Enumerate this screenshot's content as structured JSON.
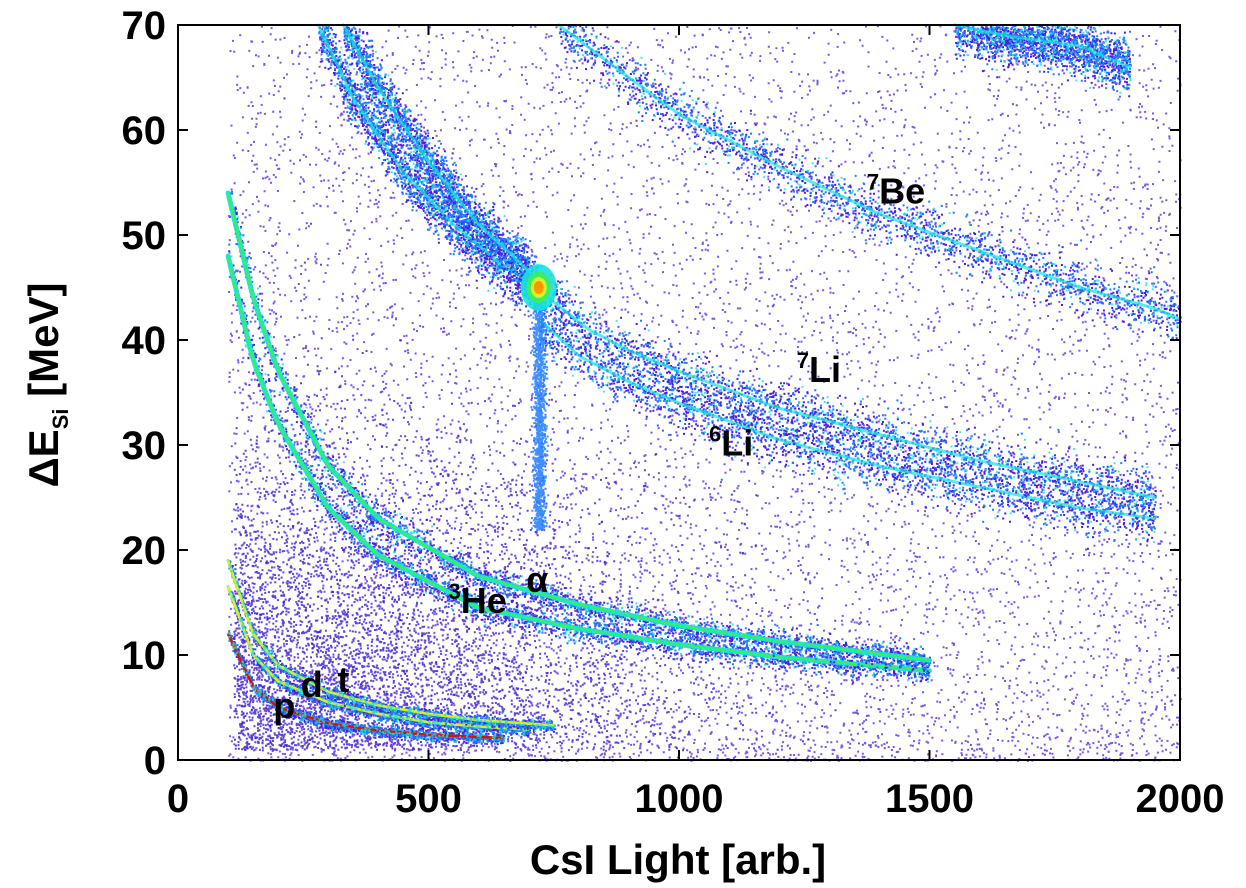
{
  "chart_data": {
    "type": "heatmap",
    "xlabel": "CsI Light [arb.]",
    "ylabel_main": "ΔE",
    "ylabel_sub": "Si",
    "ylabel_unit": "[MeV]",
    "xlim": [
      0,
      2000
    ],
    "ylim": [
      0,
      70
    ],
    "xticks": [
      0,
      500,
      1000,
      1500,
      2000
    ],
    "yticks": [
      0,
      10,
      20,
      30,
      40,
      50,
      60,
      70
    ],
    "grid": false,
    "colormap": [
      "#4b1fd8",
      "#1e7bff",
      "#18e0e0",
      "#3cf05a",
      "#f0f020",
      "#ff8c00",
      "#e00000"
    ],
    "particle_labels": [
      {
        "text": "p",
        "sup": "",
        "x": 190,
        "y": 4
      },
      {
        "text": "d",
        "sup": "",
        "x": 245,
        "y": 6
      },
      {
        "text": "t",
        "sup": "",
        "x": 318,
        "y": 6.5
      },
      {
        "text": "He",
        "sup": "3",
        "x": 540,
        "y": 14
      },
      {
        "text": "α",
        "sup": "",
        "x": 695,
        "y": 16
      },
      {
        "text": "Li",
        "sup": "6",
        "x": 1060,
        "y": 29
      },
      {
        "text": "Li",
        "sup": "7",
        "x": 1235,
        "y": 36
      },
      {
        "text": "Be",
        "sup": "7",
        "x": 1375,
        "y": 53
      }
    ],
    "bands": [
      {
        "name": "p",
        "x": [
          100,
          150,
          200,
          300,
          400,
          500,
          600,
          650
        ],
        "y": [
          12,
          7,
          5,
          3.5,
          2.8,
          2.4,
          2.2,
          2.1
        ]
      },
      {
        "name": "d",
        "x": [
          100,
          150,
          200,
          300,
          400,
          500,
          600,
          700
        ],
        "y": [
          16.5,
          10,
          7.5,
          5.5,
          4.4,
          3.6,
          3.2,
          2.9
        ]
      },
      {
        "name": "t",
        "x": [
          100,
          150,
          200,
          300,
          400,
          500,
          600,
          750
        ],
        "y": [
          19,
          12,
          9,
          6.5,
          5.2,
          4.4,
          3.8,
          3.3
        ]
      },
      {
        "name": "He3",
        "x": [
          100,
          150,
          200,
          300,
          400,
          600,
          800,
          1000,
          1200,
          1500
        ],
        "y": [
          48,
          38,
          32,
          24,
          19.5,
          14.5,
          12.5,
          11,
          9.8,
          8.5
        ]
      },
      {
        "name": "alpha",
        "x": [
          100,
          150,
          200,
          300,
          400,
          600,
          800,
          1000,
          1200,
          1500
        ],
        "y": [
          54,
          44,
          37,
          28,
          23,
          17.5,
          14.8,
          12.8,
          11.3,
          9.5
        ]
      },
      {
        "name": "Li6",
        "x": [
          720,
          800,
          900,
          1000,
          1200,
          1400,
          1600,
          1800,
          1950
        ],
        "y": [
          42,
          38.5,
          36,
          34,
          30.5,
          28,
          26,
          24,
          23
        ]
      },
      {
        "name": "Li7",
        "x": [
          740,
          820,
          900,
          1000,
          1200,
          1400,
          1600,
          1800,
          1950
        ],
        "y": [
          44,
          41,
          39,
          37,
          33.5,
          31,
          28.5,
          26.5,
          25
        ]
      },
      {
        "name": "He3-punch",
        "x": [
          280,
          350,
          450,
          550,
          650,
          720
        ],
        "y": [
          70,
          63,
          56,
          51,
          47,
          45
        ]
      },
      {
        "name": "alpha-punch",
        "x": [
          330,
          400,
          500,
          600,
          680,
          700
        ],
        "y": [
          70,
          64,
          57,
          51,
          47.5,
          46.5
        ]
      },
      {
        "name": "Be7",
        "x": [
          760,
          900,
          1000,
          1200,
          1400,
          1600,
          1800,
          1950,
          2000
        ],
        "y": [
          70,
          65,
          61.5,
          56.5,
          52,
          48.5,
          45,
          43,
          42
        ]
      },
      {
        "name": "Be-upper",
        "x": [
          1550,
          1650,
          1800,
          1900
        ],
        "y": [
          70,
          69,
          68,
          66
        ]
      }
    ]
  }
}
